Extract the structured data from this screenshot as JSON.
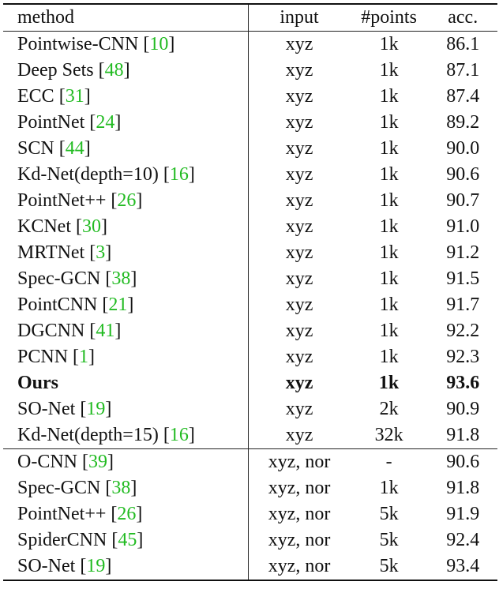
{
  "header": {
    "method": "method",
    "input": "input",
    "points": "#points",
    "acc": "acc."
  },
  "group_a": [
    {
      "method": "Pointwise-CNN",
      "ref": "10",
      "input": "xyz",
      "points": "1k",
      "acc": "86.1"
    },
    {
      "method": "Deep Sets",
      "ref": "48",
      "input": "xyz",
      "points": "1k",
      "acc": "87.1"
    },
    {
      "method": "ECC",
      "ref": "31",
      "input": "xyz",
      "points": "1k",
      "acc": "87.4"
    },
    {
      "method": "PointNet",
      "ref": "24",
      "input": "xyz",
      "points": "1k",
      "acc": "89.2"
    },
    {
      "method": "SCN",
      "ref": "44",
      "input": "xyz",
      "points": "1k",
      "acc": "90.0"
    },
    {
      "method": "Kd-Net(depth=10)",
      "ref": "16",
      "input": "xyz",
      "points": "1k",
      "acc": "90.6"
    },
    {
      "method": "PointNet++",
      "ref": "26",
      "input": "xyz",
      "points": "1k",
      "acc": "90.7"
    },
    {
      "method": "KCNet",
      "ref": "30",
      "input": "xyz",
      "points": "1k",
      "acc": "91.0"
    },
    {
      "method": "MRTNet",
      "ref": "3",
      "input": "xyz",
      "points": "1k",
      "acc": "91.2"
    },
    {
      "method": "Spec-GCN",
      "ref": "38",
      "input": "xyz",
      "points": "1k",
      "acc": "91.5"
    },
    {
      "method": "PointCNN",
      "ref": "21",
      "input": "xyz",
      "points": "1k",
      "acc": "91.7"
    },
    {
      "method": "DGCNN",
      "ref": "41",
      "input": "xyz",
      "points": "1k",
      "acc": "92.2"
    },
    {
      "method": "PCNN",
      "ref": "1",
      "input": "xyz",
      "points": "1k",
      "acc": "92.3"
    },
    {
      "method": "Ours",
      "ref": "",
      "input": "xyz",
      "points": "1k",
      "acc": "93.6",
      "bold": true
    },
    {
      "method": "SO-Net",
      "ref": "19",
      "input": "xyz",
      "points": "2k",
      "acc": "90.9"
    },
    {
      "method": "Kd-Net(depth=15)",
      "ref": "16",
      "input": "xyz",
      "points": "32k",
      "acc": "91.8"
    }
  ],
  "group_b": [
    {
      "method": "O-CNN",
      "ref": "39",
      "input": "xyz, nor",
      "points": "-",
      "acc": "90.6"
    },
    {
      "method": "Spec-GCN",
      "ref": "38",
      "input": "xyz, nor",
      "points": "1k",
      "acc": "91.8"
    },
    {
      "method": "PointNet++",
      "ref": "26",
      "input": "xyz, nor",
      "points": "5k",
      "acc": "91.9"
    },
    {
      "method": "SpiderCNN",
      "ref": "45",
      "input": "xyz, nor",
      "points": "5k",
      "acc": "92.4"
    },
    {
      "method": "SO-Net",
      "ref": "19",
      "input": "xyz, nor",
      "points": "5k",
      "acc": "93.4"
    }
  ]
}
